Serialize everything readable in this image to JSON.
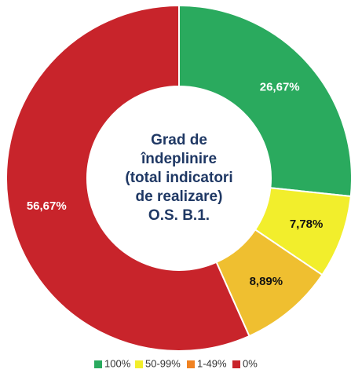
{
  "chart_data": {
    "type": "donut",
    "center_text": [
      "Grad de",
      "îndeplinire",
      "(total indicatori",
      "de realizare)",
      "O.S. B.1."
    ],
    "categories": [
      "100%",
      "50-99%",
      "1-49%",
      "0%"
    ],
    "values": [
      26.67,
      7.78,
      8.89,
      56.67
    ],
    "value_labels": [
      "26,67%",
      "7,78%",
      "8,89%",
      "56,67%"
    ],
    "colors": [
      "#2aaa5e",
      "#f2ee2c",
      "#efbf30",
      "#c8242b"
    ],
    "legend_colors": [
      "#2aaa5e",
      "#f2ee2c",
      "#f08221",
      "#c8242b"
    ]
  }
}
